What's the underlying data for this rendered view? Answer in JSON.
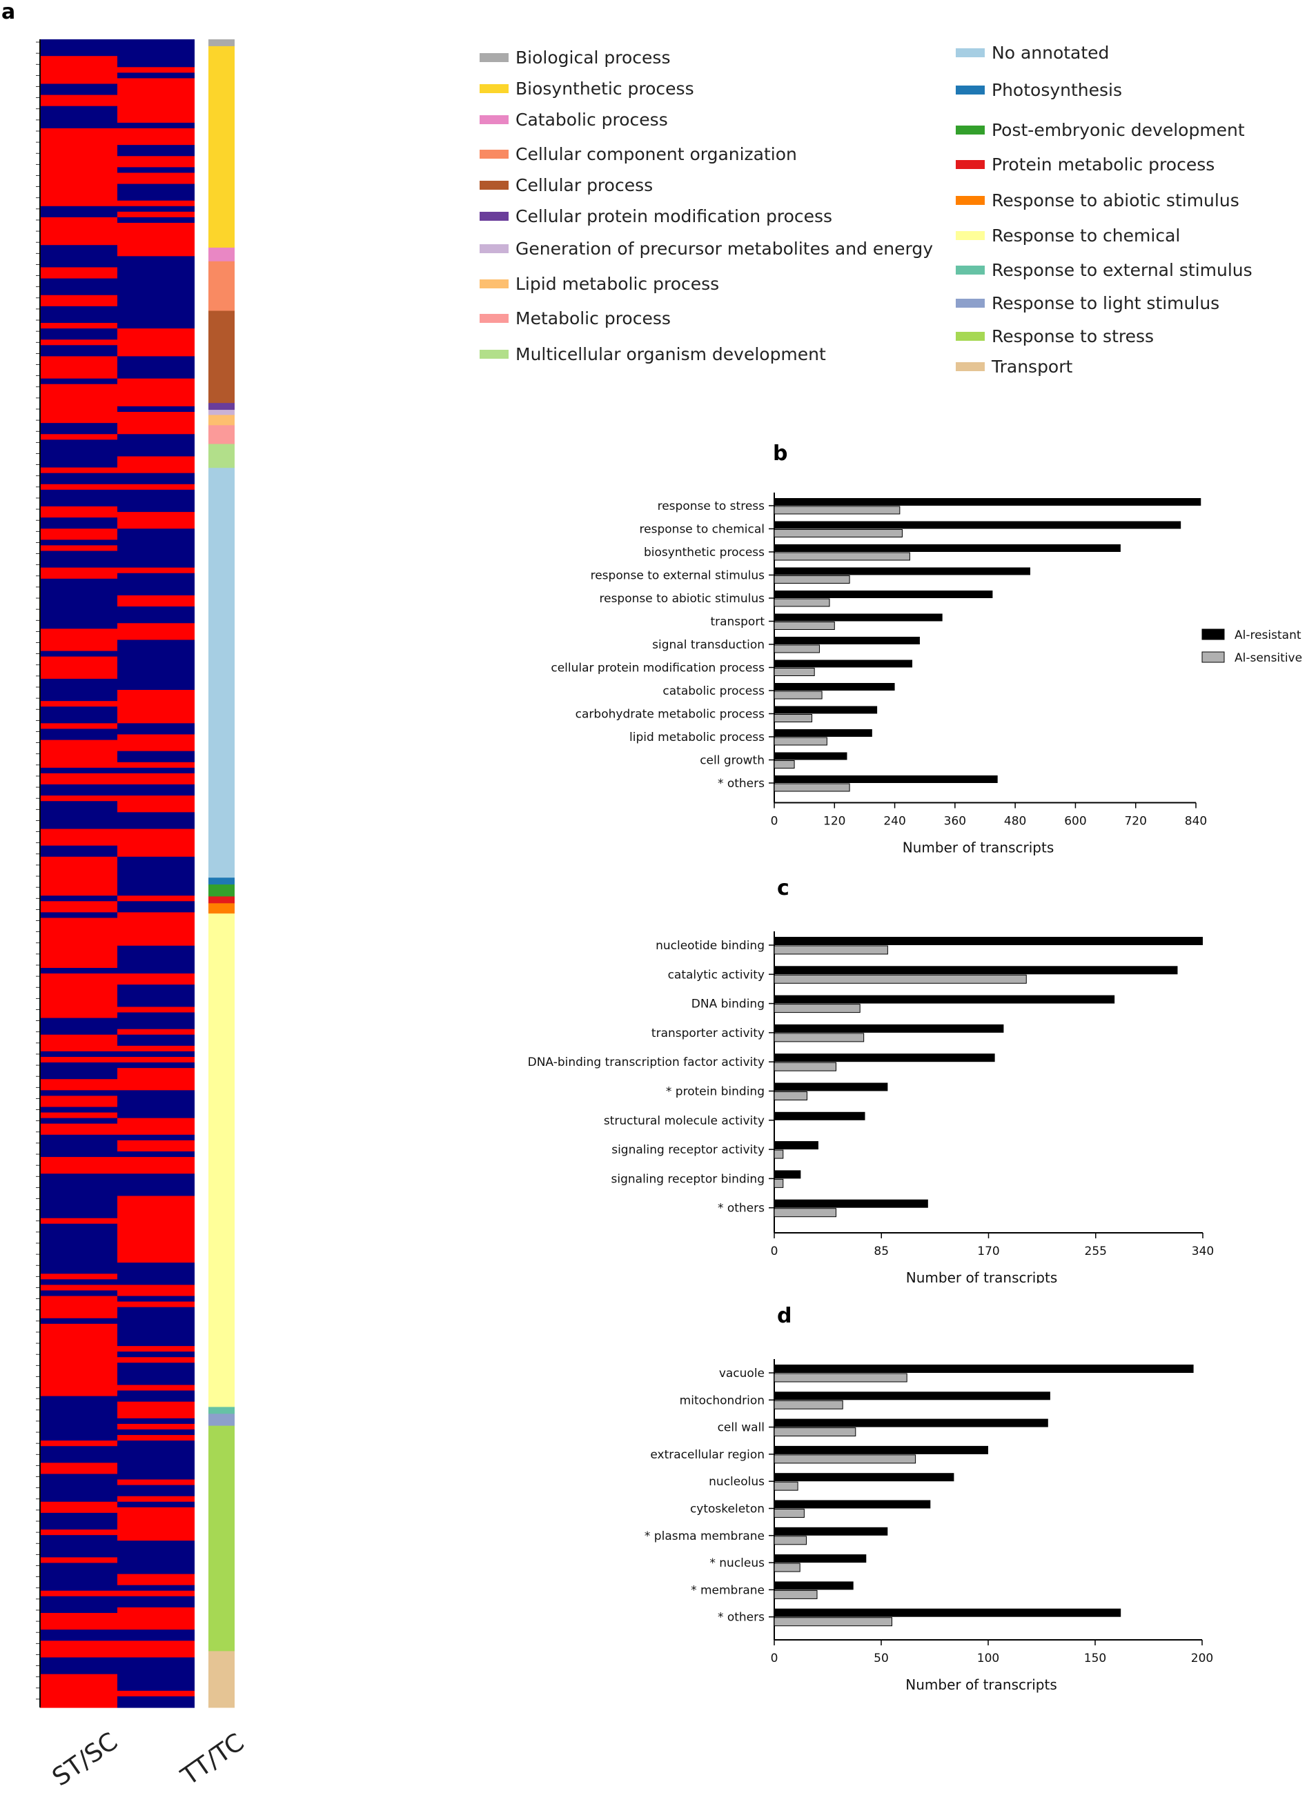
{
  "panel_a": {
    "letter": "a",
    "columns": [
      "ST/SC",
      "TT/TC"
    ],
    "colors": {
      "up": "#ff0000",
      "down": "#000080"
    },
    "legend": {
      "left": [
        {
          "label": "Biological process",
          "color": "#aaaaaa"
        },
        {
          "label": "Biosynthetic process",
          "color": "#fcd52b"
        },
        {
          "label": "Catabolic process",
          "color": "#e987c4"
        },
        {
          "label": "Cellular component organization",
          "color": "#f98a62"
        },
        {
          "label": "Cellular process",
          "color": "#b2582b"
        },
        {
          "label": "Cellular protein modification process",
          "color": "#6a3d9a"
        },
        {
          "label": "Generation of precursor metabolites and energy",
          "color": "#cab2d6"
        },
        {
          "label": "Lipid metabolic process",
          "color": "#fdbf6f"
        },
        {
          "label": "Metabolic process",
          "color": "#fb9a99"
        },
        {
          "label": "Multicellular organism development",
          "color": "#b2df8a"
        }
      ],
      "right": [
        {
          "label": "No annotated",
          "color": "#a6cee3"
        },
        {
          "label": "Photosynthesis",
          "color": "#1f78b4"
        },
        {
          "label": "Post-embryonic development",
          "color": "#33a02c"
        },
        {
          "label": "Protein metabolic process",
          "color": "#e31a1c"
        },
        {
          "label": "Response to abiotic stimulus",
          "color": "#ff7f00"
        },
        {
          "label": "Response to chemical",
          "color": "#ffff99"
        },
        {
          "label": "Response to external stimulus",
          "color": "#66c2a5"
        },
        {
          "label": "Response to light stimulus",
          "color": "#8da0cb"
        },
        {
          "label": "Response to stress",
          "color": "#a6d854"
        },
        {
          "label": "Transport",
          "color": "#e5c494"
        }
      ]
    },
    "annotation_bar": [
      {
        "category": "Biological process",
        "fraction": 0.004
      },
      {
        "category": "Biosynthetic process",
        "fraction": 0.118
      },
      {
        "category": "Catabolic process",
        "fraction": 0.008
      },
      {
        "category": "Cellular component organization",
        "fraction": 0.029
      },
      {
        "category": "Cellular process",
        "fraction": 0.054
      },
      {
        "category": "Cellular protein modification process",
        "fraction": 0.004
      },
      {
        "category": "Generation of precursor metabolites and energy",
        "fraction": 0.003
      },
      {
        "category": "Lipid metabolic process",
        "fraction": 0.006
      },
      {
        "category": "Metabolic process",
        "fraction": 0.011
      },
      {
        "category": "Multicellular organism development",
        "fraction": 0.014
      },
      {
        "category": "No annotated",
        "fraction": 0.24
      },
      {
        "category": "Photosynthesis",
        "fraction": 0.004
      },
      {
        "category": "Post-embryonic development",
        "fraction": 0.007
      },
      {
        "category": "Protein metabolic process",
        "fraction": 0.004
      },
      {
        "category": "Response to abiotic stimulus",
        "fraction": 0.006
      },
      {
        "category": "Response to chemical",
        "fraction": 0.289
      },
      {
        "category": "Response to external stimulus",
        "fraction": 0.004
      },
      {
        "category": "Response to light stimulus",
        "fraction": 0.007
      },
      {
        "category": "Response to stress",
        "fraction": 0.132
      },
      {
        "category": "Transport",
        "fraction": 0.033
      }
    ]
  },
  "chart_data": [
    {
      "type": "bar",
      "panel": "b",
      "orientation": "horizontal",
      "categories": [
        "response to stress",
        "response to chemical",
        "biosynthetic process",
        "response to external stimulus",
        "response to abiotic stimulus",
        "transport",
        "signal transduction",
        "cellular protein modification process",
        "catabolic process",
        "carbohydrate metabolic process",
        "lipid metabolic process",
        "cell growth",
        "* others"
      ],
      "series": [
        {
          "name": "Al-resistant",
          "color": "#000000",
          "values": [
            850,
            810,
            690,
            510,
            435,
            335,
            290,
            275,
            240,
            205,
            195,
            145,
            445
          ]
        },
        {
          "name": "Al-sensitive",
          "color": "#b0b0b0",
          "values": [
            250,
            255,
            270,
            150,
            110,
            120,
            90,
            80,
            95,
            75,
            105,
            40,
            150
          ]
        }
      ],
      "xlabel": "Number of transcripts",
      "xticks": [
        0,
        120,
        240,
        360,
        480,
        600,
        720,
        840
      ],
      "xlim": [
        0,
        840
      ],
      "legend": "right"
    },
    {
      "type": "bar",
      "panel": "c",
      "orientation": "horizontal",
      "categories": [
        "nucleotide binding",
        "catalytic activity",
        "DNA binding",
        "transporter activity",
        "DNA-binding transcription factor activity",
        "* protein binding",
        "structural molecule activity",
        "signaling receptor activity",
        "signaling receptor binding",
        "* others"
      ],
      "series": [
        {
          "name": "Al-resistant",
          "color": "#000000",
          "values": [
            340,
            320,
            270,
            182,
            175,
            90,
            72,
            35,
            21,
            122
          ]
        },
        {
          "name": "Al-sensitive",
          "color": "#b0b0b0",
          "values": [
            90,
            200,
            68,
            71,
            49,
            26,
            0,
            7,
            7,
            49
          ]
        }
      ],
      "xlabel": "Number of transcripts",
      "xticks": [
        0,
        85,
        170,
        255,
        340
      ],
      "xlim": [
        0,
        340
      ]
    },
    {
      "type": "bar",
      "panel": "d",
      "orientation": "horizontal",
      "categories": [
        "vacuole",
        "mitochondrion",
        "cell wall",
        "extracellular region",
        "nucleolus",
        "cytoskeleton",
        "* plasma membrane",
        "* nucleus",
        "* membrane",
        "* others"
      ],
      "series": [
        {
          "name": "Al-resistant",
          "color": "#000000",
          "values": [
            196,
            129,
            128,
            100,
            84,
            73,
            53,
            43,
            37,
            162
          ]
        },
        {
          "name": "Al-sensitive",
          "color": "#b0b0b0",
          "values": [
            62,
            32,
            38,
            66,
            11,
            14,
            15,
            12,
            20,
            55
          ]
        }
      ],
      "xlabel": "Number of transcripts",
      "xticks": [
        0,
        50,
        100,
        150,
        200
      ],
      "xlim": [
        0,
        200
      ]
    }
  ]
}
